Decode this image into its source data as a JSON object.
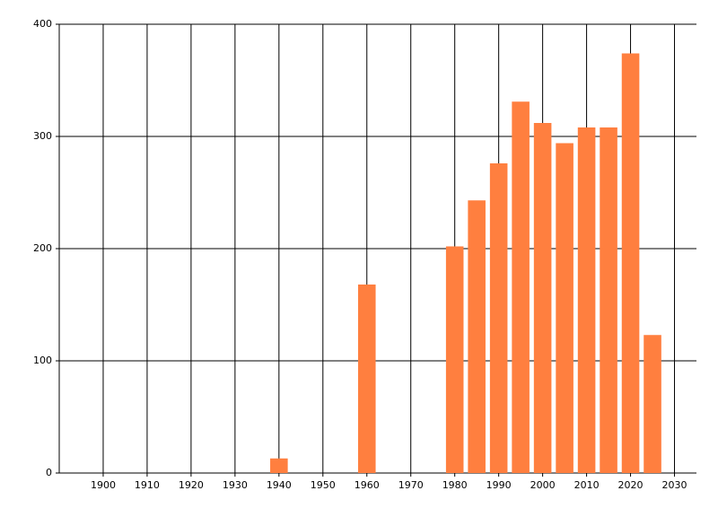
{
  "chart_data": {
    "type": "bar",
    "x": [
      1940,
      1960,
      1980,
      1985,
      1990,
      1995,
      2000,
      2005,
      2010,
      2015,
      2020,
      2025
    ],
    "values": [
      13,
      168,
      202,
      243,
      276,
      331,
      312,
      294,
      308,
      308,
      374,
      123
    ],
    "color": "#ff7f3f",
    "xlim": [
      1890,
      2035
    ],
    "xticks": [
      1900,
      1910,
      1920,
      1930,
      1940,
      1950,
      1960,
      1970,
      1980,
      1990,
      2000,
      2010,
      2020,
      2030
    ],
    "ylim": [
      0,
      400
    ],
    "yticks": [
      0,
      100,
      200,
      300,
      400
    ],
    "grid": true
  }
}
